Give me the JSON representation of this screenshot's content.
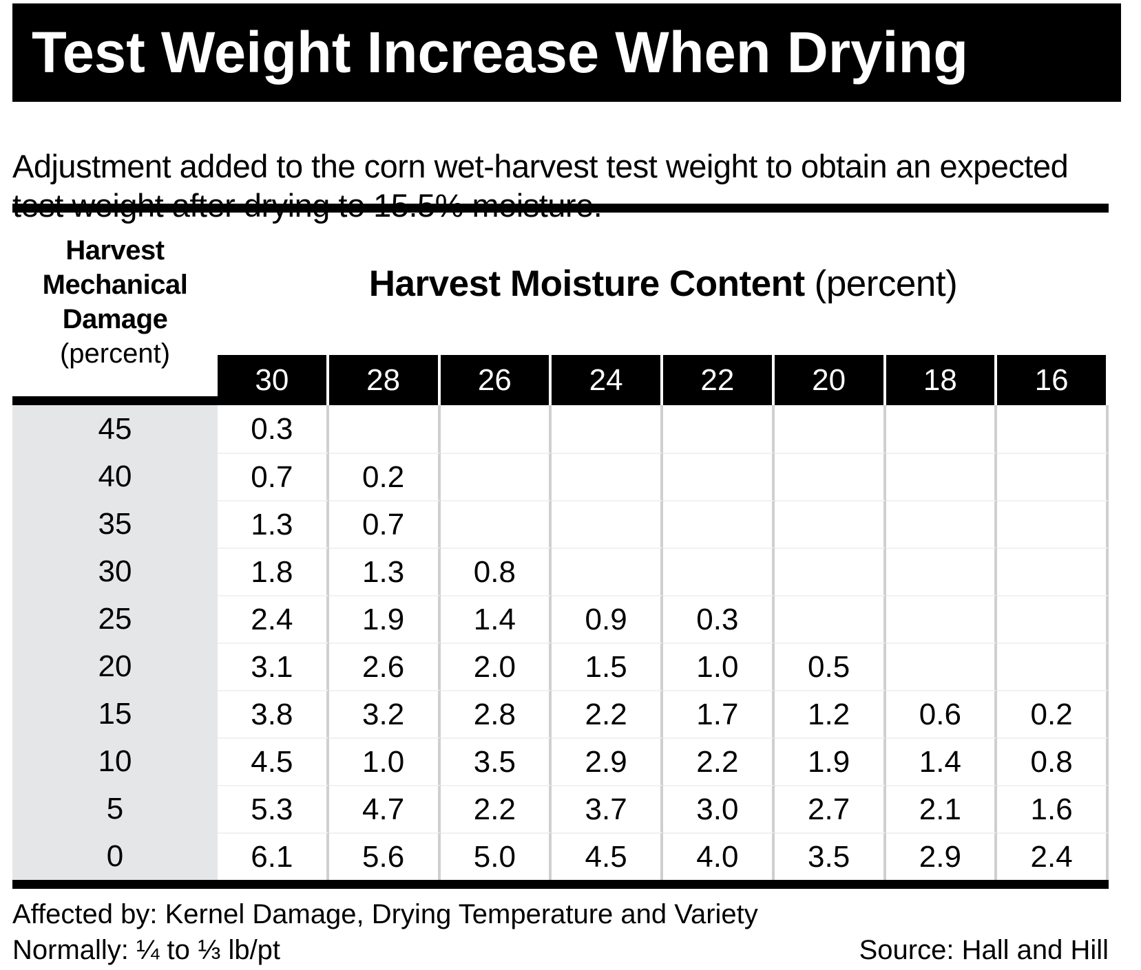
{
  "title": "Test Weight Increase When Drying",
  "subtitle": "Adjustment added to the corn wet-harvest test weight to obtain an expected test weight after drying to 15.5% moisture.",
  "row_header": {
    "lines": [
      "Harvest",
      "Mechanical",
      "Damage"
    ],
    "unit": "(percent)"
  },
  "col_header": {
    "label": "Harvest Moisture Content",
    "unit": "(percent)"
  },
  "columns": [
    "30",
    "28",
    "26",
    "24",
    "22",
    "20",
    "18",
    "16"
  ],
  "rows": [
    {
      "damage": "45",
      "values": [
        "0.3",
        "",
        "",
        "",
        "",
        "",
        "",
        ""
      ]
    },
    {
      "damage": "40",
      "values": [
        "0.7",
        "0.2",
        "",
        "",
        "",
        "",
        "",
        ""
      ]
    },
    {
      "damage": "35",
      "values": [
        "1.3",
        "0.7",
        "",
        "",
        "",
        "",
        "",
        ""
      ]
    },
    {
      "damage": "30",
      "values": [
        "1.8",
        "1.3",
        "0.8",
        "",
        "",
        "",
        "",
        ""
      ]
    },
    {
      "damage": "25",
      "values": [
        "2.4",
        "1.9",
        "1.4",
        "0.9",
        "0.3",
        "",
        "",
        ""
      ]
    },
    {
      "damage": "20",
      "values": [
        "3.1",
        "2.6",
        "2.0",
        "1.5",
        "1.0",
        "0.5",
        "",
        ""
      ]
    },
    {
      "damage": "15",
      "values": [
        "3.8",
        "3.2",
        "2.8",
        "2.2",
        "1.7",
        "1.2",
        "0.6",
        "0.2"
      ]
    },
    {
      "damage": "10",
      "values": [
        "4.5",
        "1.0",
        "3.5",
        "2.9",
        "2.2",
        "1.9",
        "1.4",
        "0.8"
      ]
    },
    {
      "damage": "5",
      "values": [
        "5.3",
        "4.7",
        "2.2",
        "3.7",
        "3.0",
        "2.7",
        "2.1",
        "1.6"
      ]
    },
    {
      "damage": "0",
      "values": [
        "6.1",
        "5.6",
        "5.0",
        "4.5",
        "4.0",
        "3.5",
        "2.9",
        "2.4"
      ]
    }
  ],
  "footer": {
    "affected": "Affected by: Kernel Damage, Drying Temperature and Variety",
    "normally": "Normally: ¼ to ⅓ lb/pt",
    "source": "Source: Hall and Hill"
  },
  "colors": {
    "accent": "#000000",
    "left_column_bg": "#e5e6e8",
    "divider": "#cfcfcf"
  }
}
